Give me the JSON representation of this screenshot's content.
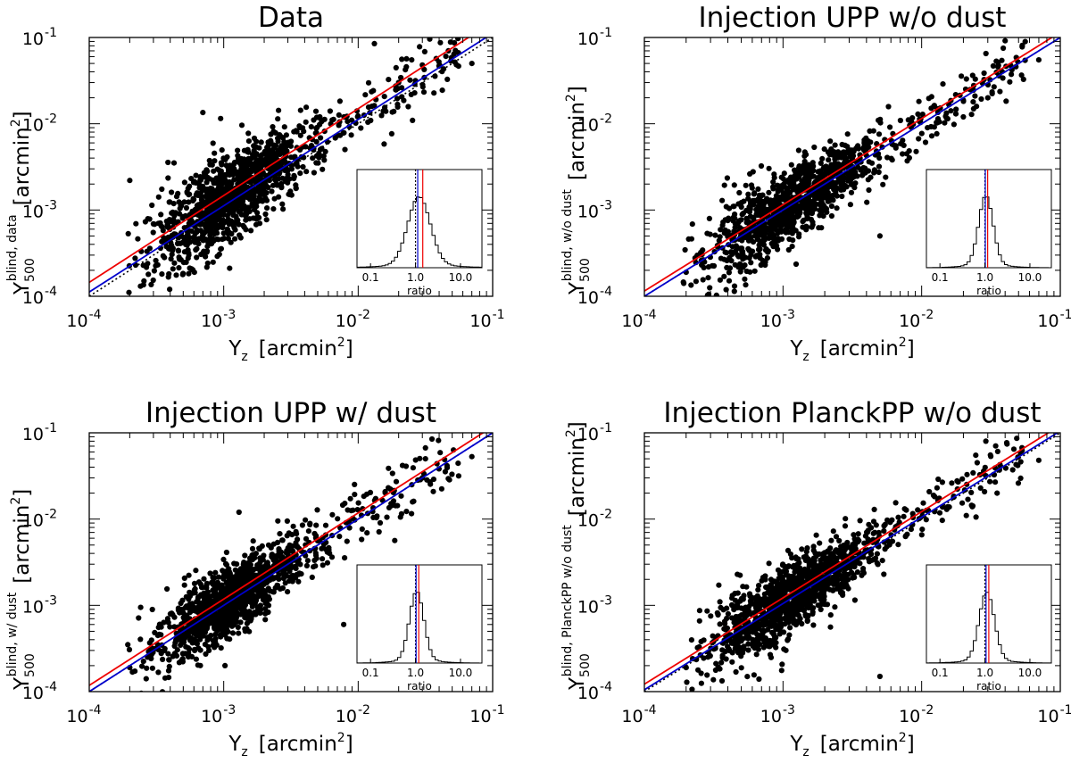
{
  "chart_data": [
    {
      "type": "scatter",
      "title": "Data",
      "xlabel": "Y",
      "xlabel_sub": "z",
      "xlabel_unit": "[arcmin",
      "xlabel_sup": "2",
      "xlabel_close": "]",
      "ylabel": "Y",
      "ylabel_sub": "500",
      "ylabel_sup": "blind, data",
      "ylabel_unit": "[arcmin",
      "ylabel_unit_sup": "2",
      "ylabel_close": "]",
      "xscale": "log",
      "yscale": "log",
      "xlim": [
        0.0001,
        0.1
      ],
      "ylim": [
        0.0001,
        0.1
      ],
      "xticks": [
        {
          "base": "10",
          "exp": "-4"
        },
        {
          "base": "10",
          "exp": "-3"
        },
        {
          "base": "10",
          "exp": "-2"
        },
        {
          "base": "10",
          "exp": "-1"
        }
      ],
      "yticks": [
        {
          "base": "10",
          "exp": "-4"
        },
        {
          "base": "10",
          "exp": "-3"
        },
        {
          "base": "10",
          "exp": "-2"
        },
        {
          "base": "10",
          "exp": "-1"
        }
      ],
      "lines": [
        {
          "name": "one-to-one",
          "color": "#000000",
          "style": "dotted",
          "slope": 1.0,
          "norm": 1.0
        },
        {
          "name": "fit",
          "color": "#0000cc",
          "style": "solid",
          "slope": 1.0,
          "norm": 1.12
        },
        {
          "name": "mean ratio",
          "color": "#ee0000",
          "style": "solid",
          "slope": 0.98,
          "norm": 1.45
        }
      ],
      "scatter": {
        "n": 1200,
        "logx_mean": -2.95,
        "logx_sd": 0.28,
        "logx_min": -3.72,
        "logx_max": -1.15,
        "y_norm": 1.25,
        "y_scatter": 0.21,
        "seed": 11,
        "outliers": [
          [
            0.0002,
            0.0022
          ],
          [
            0.07,
            0.05
          ],
          [
            0.03,
            0.048
          ],
          [
            0.0007,
            0.0135
          ],
          [
            0.02,
            0.03
          ],
          [
            0.025,
            0.055
          ]
        ]
      },
      "inset": {
        "xlabel": "ratio",
        "xticks": [
          "0.1",
          "1.0",
          "10.0"
        ],
        "hist_center": 1.2,
        "hist_width": 0.25,
        "lines": [
          {
            "name": "unity",
            "color": "#000000",
            "style": "dotted",
            "value": 1.0
          },
          {
            "name": "median",
            "color": "#0000cc",
            "style": "solid",
            "value": 1.12
          },
          {
            "name": "mean",
            "color": "#ee0000",
            "style": "solid",
            "value": 1.45
          }
        ]
      }
    },
    {
      "type": "scatter",
      "title": "Injection UPP w/o dust",
      "xlabel": "Y",
      "xlabel_sub": "z",
      "xlabel_unit": "[arcmin",
      "xlabel_sup": "2",
      "xlabel_close": "]",
      "ylabel": "Y",
      "ylabel_sub": "500",
      "ylabel_sup": "blind, w/o dust",
      "ylabel_unit": "[arcmin",
      "ylabel_unit_sup": "2",
      "ylabel_close": "]",
      "xscale": "log",
      "yscale": "log",
      "xlim": [
        0.0001,
        0.1
      ],
      "ylim": [
        0.0001,
        0.1
      ],
      "xticks": [
        {
          "base": "10",
          "exp": "-4"
        },
        {
          "base": "10",
          "exp": "-3"
        },
        {
          "base": "10",
          "exp": "-2"
        },
        {
          "base": "10",
          "exp": "-1"
        }
      ],
      "yticks": [
        {
          "base": "10",
          "exp": "-4"
        },
        {
          "base": "10",
          "exp": "-3"
        },
        {
          "base": "10",
          "exp": "-2"
        },
        {
          "base": "10",
          "exp": "-1"
        }
      ],
      "lines": [
        {
          "name": "one-to-one",
          "color": "#000000",
          "style": "dotted",
          "slope": 1.0,
          "norm": 1.0
        },
        {
          "name": "fit",
          "color": "#0000cc",
          "style": "solid",
          "slope": 1.0,
          "norm": 1.0
        },
        {
          "name": "mean ratio",
          "color": "#ee0000",
          "style": "solid",
          "slope": 1.0,
          "norm": 1.15
        }
      ],
      "scatter": {
        "n": 1200,
        "logx_mean": -2.95,
        "logx_sd": 0.28,
        "logx_min": -3.72,
        "logx_max": -1.15,
        "y_norm": 1.02,
        "y_scatter": 0.17,
        "seed": 23,
        "outliers": [
          [
            0.0002,
            0.00019
          ],
          [
            0.07,
            0.055
          ],
          [
            0.03,
            0.02
          ],
          [
            0.005,
            0.0005
          ],
          [
            0.02,
            0.012
          ]
        ]
      },
      "inset": {
        "xlabel": "ratio",
        "xticks": [
          "0.1",
          "1.0",
          "10.0"
        ],
        "hist_center": 1.05,
        "hist_width": 0.16,
        "lines": [
          {
            "name": "unity",
            "color": "#000000",
            "style": "dotted",
            "value": 1.0
          },
          {
            "name": "median",
            "color": "#0000cc",
            "style": "solid",
            "value": 1.02
          },
          {
            "name": "mean",
            "color": "#ee0000",
            "style": "solid",
            "value": 1.15
          }
        ]
      }
    },
    {
      "type": "scatter",
      "title": "Injection UPP w/ dust",
      "xlabel": "Y",
      "xlabel_sub": "z",
      "xlabel_unit": "[arcmin",
      "xlabel_sup": "2",
      "xlabel_close": "]",
      "ylabel": "Y",
      "ylabel_sub": "500",
      "ylabel_sup": "blind, w/ dust",
      "ylabel_unit": "[arcmin",
      "ylabel_unit_sup": "2",
      "ylabel_close": "]",
      "xscale": "log",
      "yscale": "log",
      "xlim": [
        0.0001,
        0.1
      ],
      "ylim": [
        0.0001,
        0.1
      ],
      "xticks": [
        {
          "base": "10",
          "exp": "-4"
        },
        {
          "base": "10",
          "exp": "-3"
        },
        {
          "base": "10",
          "exp": "-2"
        },
        {
          "base": "10",
          "exp": "-1"
        }
      ],
      "yticks": [
        {
          "base": "10",
          "exp": "-4"
        },
        {
          "base": "10",
          "exp": "-3"
        },
        {
          "base": "10",
          "exp": "-2"
        },
        {
          "base": "10",
          "exp": "-1"
        }
      ],
      "lines": [
        {
          "name": "one-to-one",
          "color": "#000000",
          "style": "dotted",
          "slope": 1.0,
          "norm": 1.0
        },
        {
          "name": "fit",
          "color": "#0000cc",
          "style": "solid",
          "slope": 1.0,
          "norm": 1.0
        },
        {
          "name": "mean ratio",
          "color": "#ee0000",
          "style": "solid",
          "slope": 1.0,
          "norm": 1.18
        }
      ],
      "scatter": {
        "n": 1200,
        "logx_mean": -2.95,
        "logx_sd": 0.28,
        "logx_min": -3.72,
        "logx_max": -1.15,
        "y_norm": 1.05,
        "y_scatter": 0.17,
        "seed": 37,
        "outliers": [
          [
            0.0002,
            0.00019
          ],
          [
            0.07,
            0.053
          ],
          [
            0.03,
            0.03
          ],
          [
            0.0078,
            0.0006
          ],
          [
            0.021,
            0.0115
          ],
          [
            0.0013,
            0.012
          ]
        ]
      },
      "inset": {
        "xlabel": "ratio",
        "xticks": [
          "0.1",
          "1.0",
          "10.0"
        ],
        "hist_center": 1.06,
        "hist_width": 0.16,
        "lines": [
          {
            "name": "unity",
            "color": "#000000",
            "style": "dotted",
            "value": 1.0
          },
          {
            "name": "median",
            "color": "#0000cc",
            "style": "solid",
            "value": 1.03
          },
          {
            "name": "mean",
            "color": "#ee0000",
            "style": "solid",
            "value": 1.18
          }
        ]
      }
    },
    {
      "type": "scatter",
      "title": "Injection PlanckPP w/o dust",
      "xlabel": "Y",
      "xlabel_sub": "z",
      "xlabel_unit": "[arcmin",
      "xlabel_sup": "2",
      "xlabel_close": "]",
      "ylabel": "Y",
      "ylabel_sub": "500",
      "ylabel_sup": "blind, PlanckPP w/o dust",
      "ylabel_unit": "[arcmin",
      "ylabel_unit_sup": "2",
      "ylabel_close": "]",
      "xscale": "log",
      "yscale": "log",
      "xlim": [
        0.0001,
        0.1
      ],
      "ylim": [
        0.0001,
        0.1
      ],
      "xticks": [
        {
          "base": "10",
          "exp": "-4"
        },
        {
          "base": "10",
          "exp": "-3"
        },
        {
          "base": "10",
          "exp": "-2"
        },
        {
          "base": "10",
          "exp": "-1"
        }
      ],
      "yticks": [
        {
          "base": "10",
          "exp": "-4"
        },
        {
          "base": "10",
          "exp": "-3"
        },
        {
          "base": "10",
          "exp": "-2"
        },
        {
          "base": "10",
          "exp": "-1"
        }
      ],
      "lines": [
        {
          "name": "one-to-one",
          "color": "#000000",
          "style": "dotted",
          "slope": 1.0,
          "norm": 1.0
        },
        {
          "name": "fit",
          "color": "#0000cc",
          "style": "solid",
          "slope": 1.0,
          "norm": 1.05
        },
        {
          "name": "mean ratio",
          "color": "#ee0000",
          "style": "solid",
          "slope": 1.0,
          "norm": 1.22
        }
      ],
      "scatter": {
        "n": 1200,
        "logx_mean": -2.95,
        "logx_sd": 0.28,
        "logx_min": -3.72,
        "logx_max": -1.15,
        "y_norm": 1.08,
        "y_scatter": 0.18,
        "seed": 53,
        "outliers": [
          [
            0.0002,
            0.00019
          ],
          [
            0.07,
            0.048
          ],
          [
            0.035,
            0.02
          ],
          [
            0.005,
            0.00015
          ],
          [
            0.021,
            0.011
          ],
          [
            0.028,
            0.036
          ]
        ]
      },
      "inset": {
        "xlabel": "ratio",
        "xticks": [
          "0.1",
          "1.0",
          "10.0"
        ],
        "hist_center": 1.1,
        "hist_width": 0.17,
        "lines": [
          {
            "name": "unity",
            "color": "#000000",
            "style": "dotted",
            "value": 1.0
          },
          {
            "name": "median",
            "color": "#0000cc",
            "style": "solid",
            "value": 1.06
          },
          {
            "name": "mean",
            "color": "#ee0000",
            "style": "solid",
            "value": 1.22
          }
        ]
      }
    }
  ]
}
